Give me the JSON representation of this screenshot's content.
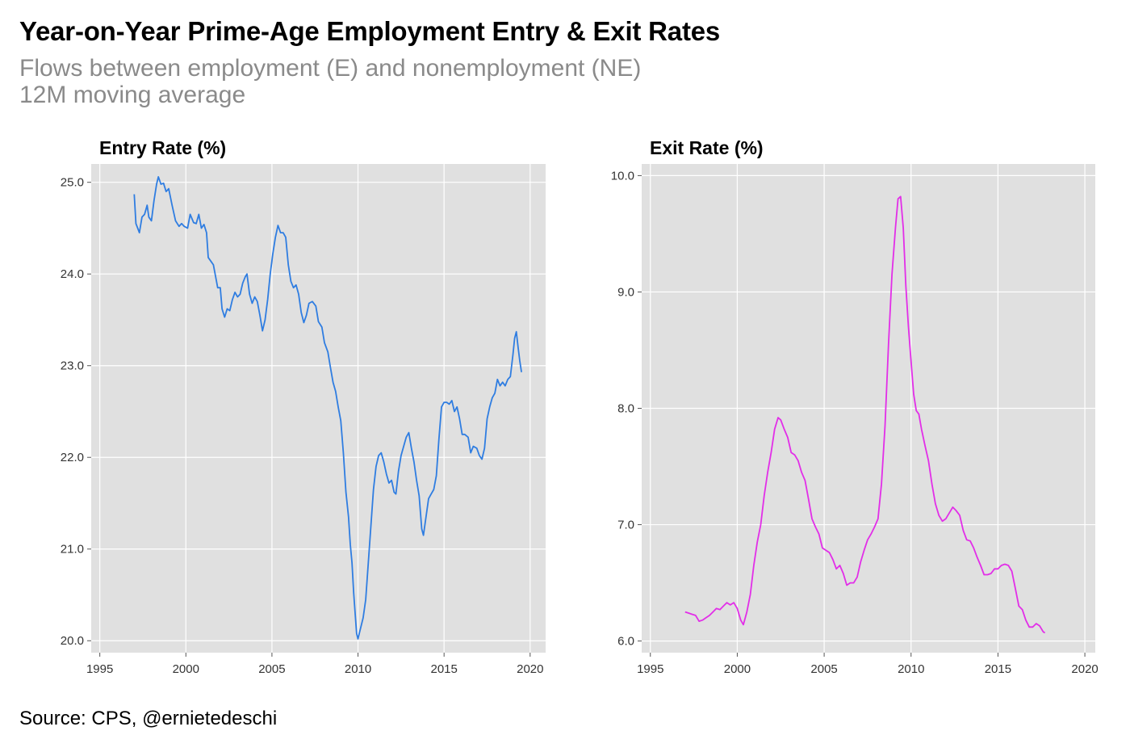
{
  "title": "Year-on-Year Prime-Age Employment Entry & Exit Rates",
  "subtitle_line1": "Flows between employment (E) and nonemployment (NE)",
  "subtitle_line2": "12M moving average",
  "source": "Source: CPS, @ernietedeschi",
  "chart_data": [
    {
      "type": "line",
      "title": "Entry Rate (%)",
      "color": "#2f7de1",
      "xlim": [
        1994.5,
        2020.9
      ],
      "ylim": [
        19.87,
        25.2
      ],
      "xticks": [
        1995,
        2000,
        2005,
        2010,
        2015,
        2020
      ],
      "yticks": [
        20.0,
        21.0,
        22.0,
        23.0,
        24.0,
        25.0
      ],
      "ytick_labels": [
        "20.0",
        "21.0",
        "22.0",
        "23.0",
        "24.0",
        "25.0"
      ],
      "xtick_labels": [
        "1995",
        "2000",
        "2005",
        "2010",
        "2015",
        "2020"
      ],
      "points": [
        [
          1997.0,
          24.87
        ],
        [
          1997.1,
          24.55
        ],
        [
          1997.2,
          24.5
        ],
        [
          1997.3,
          24.45
        ],
        [
          1997.45,
          24.62
        ],
        [
          1997.6,
          24.65
        ],
        [
          1997.75,
          24.75
        ],
        [
          1997.85,
          24.62
        ],
        [
          1998.0,
          24.58
        ],
        [
          1998.15,
          24.8
        ],
        [
          1998.3,
          24.98
        ],
        [
          1998.4,
          25.06
        ],
        [
          1998.55,
          24.98
        ],
        [
          1998.7,
          24.99
        ],
        [
          1998.85,
          24.9
        ],
        [
          1999.0,
          24.93
        ],
        [
          1999.2,
          24.75
        ],
        [
          1999.4,
          24.58
        ],
        [
          1999.6,
          24.52
        ],
        [
          1999.75,
          24.55
        ],
        [
          1999.9,
          24.52
        ],
        [
          2000.1,
          24.5
        ],
        [
          2000.25,
          24.65
        ],
        [
          2000.45,
          24.56
        ],
        [
          2000.6,
          24.55
        ],
        [
          2000.75,
          24.65
        ],
        [
          2000.9,
          24.5
        ],
        [
          2001.05,
          24.54
        ],
        [
          2001.2,
          24.45
        ],
        [
          2001.3,
          24.18
        ],
        [
          2001.45,
          24.14
        ],
        [
          2001.6,
          24.1
        ],
        [
          2001.75,
          23.95
        ],
        [
          2001.85,
          23.85
        ],
        [
          2002.0,
          23.85
        ],
        [
          2002.1,
          23.62
        ],
        [
          2002.25,
          23.53
        ],
        [
          2002.4,
          23.62
        ],
        [
          2002.55,
          23.6
        ],
        [
          2002.7,
          23.72
        ],
        [
          2002.85,
          23.8
        ],
        [
          2003.0,
          23.75
        ],
        [
          2003.15,
          23.78
        ],
        [
          2003.3,
          23.9
        ],
        [
          2003.45,
          23.97
        ],
        [
          2003.55,
          24.0
        ],
        [
          2003.7,
          23.78
        ],
        [
          2003.85,
          23.68
        ],
        [
          2004.0,
          23.75
        ],
        [
          2004.15,
          23.7
        ],
        [
          2004.3,
          23.55
        ],
        [
          2004.45,
          23.38
        ],
        [
          2004.6,
          23.5
        ],
        [
          2004.75,
          23.72
        ],
        [
          2004.9,
          24.0
        ],
        [
          2005.05,
          24.22
        ],
        [
          2005.2,
          24.4
        ],
        [
          2005.35,
          24.53
        ],
        [
          2005.5,
          24.45
        ],
        [
          2005.65,
          24.45
        ],
        [
          2005.8,
          24.4
        ],
        [
          2005.95,
          24.1
        ],
        [
          2006.1,
          23.92
        ],
        [
          2006.25,
          23.85
        ],
        [
          2006.4,
          23.88
        ],
        [
          2006.55,
          23.78
        ],
        [
          2006.7,
          23.58
        ],
        [
          2006.85,
          23.47
        ],
        [
          2007.0,
          23.55
        ],
        [
          2007.15,
          23.68
        ],
        [
          2007.35,
          23.7
        ],
        [
          2007.55,
          23.65
        ],
        [
          2007.7,
          23.48
        ],
        [
          2007.9,
          23.42
        ],
        [
          2008.05,
          23.25
        ],
        [
          2008.25,
          23.15
        ],
        [
          2008.4,
          22.98
        ],
        [
          2008.55,
          22.82
        ],
        [
          2008.7,
          22.72
        ],
        [
          2008.85,
          22.55
        ],
        [
          2009.0,
          22.4
        ],
        [
          2009.15,
          22.05
        ],
        [
          2009.3,
          21.62
        ],
        [
          2009.45,
          21.35
        ],
        [
          2009.55,
          21.05
        ],
        [
          2009.65,
          20.85
        ],
        [
          2009.75,
          20.52
        ],
        [
          2009.85,
          20.25
        ],
        [
          2009.92,
          20.08
        ],
        [
          2010.0,
          20.02
        ],
        [
          2010.1,
          20.1
        ],
        [
          2010.3,
          20.25
        ],
        [
          2010.45,
          20.45
        ],
        [
          2010.6,
          20.85
        ],
        [
          2010.75,
          21.25
        ],
        [
          2010.9,
          21.65
        ],
        [
          2011.05,
          21.9
        ],
        [
          2011.2,
          22.02
        ],
        [
          2011.35,
          22.05
        ],
        [
          2011.5,
          21.95
        ],
        [
          2011.65,
          21.82
        ],
        [
          2011.8,
          21.72
        ],
        [
          2011.95,
          21.75
        ],
        [
          2012.1,
          21.62
        ],
        [
          2012.2,
          21.6
        ],
        [
          2012.35,
          21.85
        ],
        [
          2012.5,
          22.02
        ],
        [
          2012.65,
          22.12
        ],
        [
          2012.8,
          22.22
        ],
        [
          2012.95,
          22.27
        ],
        [
          2013.1,
          22.1
        ],
        [
          2013.25,
          21.95
        ],
        [
          2013.4,
          21.75
        ],
        [
          2013.55,
          21.58
        ],
        [
          2013.7,
          21.22
        ],
        [
          2013.8,
          21.15
        ],
        [
          2013.95,
          21.35
        ],
        [
          2014.1,
          21.55
        ],
        [
          2014.25,
          21.6
        ],
        [
          2014.4,
          21.65
        ],
        [
          2014.55,
          21.8
        ],
        [
          2014.7,
          22.2
        ],
        [
          2014.85,
          22.55
        ],
        [
          2015.0,
          22.6
        ],
        [
          2015.15,
          22.6
        ],
        [
          2015.3,
          22.58
        ],
        [
          2015.45,
          22.62
        ],
        [
          2015.6,
          22.5
        ],
        [
          2015.75,
          22.55
        ],
        [
          2015.9,
          22.42
        ],
        [
          2016.05,
          22.25
        ],
        [
          2016.2,
          22.25
        ],
        [
          2016.4,
          22.22
        ],
        [
          2016.55,
          22.05
        ],
        [
          2016.7,
          22.12
        ],
        [
          2016.9,
          22.1
        ],
        [
          2017.05,
          22.02
        ],
        [
          2017.2,
          21.98
        ],
        [
          2017.35,
          22.1
        ],
        [
          2017.5,
          22.42
        ],
        [
          2017.65,
          22.55
        ],
        [
          2017.8,
          22.65
        ],
        [
          2017.95,
          22.7
        ],
        [
          2018.1,
          22.85
        ],
        [
          2018.25,
          22.78
        ],
        [
          2018.4,
          22.82
        ],
        [
          2018.55,
          22.78
        ],
        [
          2018.7,
          22.85
        ],
        [
          2018.85,
          22.88
        ],
        [
          2019.0,
          23.12
        ],
        [
          2019.1,
          23.3
        ],
        [
          2019.2,
          23.37
        ],
        [
          2019.3,
          23.2
        ],
        [
          2019.4,
          23.05
        ],
        [
          2019.5,
          22.93
        ]
      ]
    },
    {
      "type": "line",
      "title": "Exit Rate (%)",
      "color": "#e22ee8",
      "xlim": [
        1994.5,
        2020.6
      ],
      "ylim": [
        5.9,
        10.1
      ],
      "xticks": [
        1995,
        2000,
        2005,
        2010,
        2015,
        2020
      ],
      "yticks": [
        6.0,
        7.0,
        8.0,
        9.0,
        10.0
      ],
      "ytick_labels": [
        "6.0",
        "7.0",
        "8.0",
        "9.0",
        "10.0"
      ],
      "xtick_labels": [
        "1995",
        "2000",
        "2005",
        "2010",
        "2015",
        "2020"
      ],
      "points": [
        [
          1997.0,
          6.25
        ],
        [
          1997.2,
          6.24
        ],
        [
          1997.4,
          6.23
        ],
        [
          1997.6,
          6.22
        ],
        [
          1997.8,
          6.17
        ],
        [
          1998.0,
          6.18
        ],
        [
          1998.2,
          6.2
        ],
        [
          1998.4,
          6.22
        ],
        [
          1998.6,
          6.25
        ],
        [
          1998.8,
          6.28
        ],
        [
          1999.0,
          6.27
        ],
        [
          1999.2,
          6.3
        ],
        [
          1999.4,
          6.33
        ],
        [
          1999.6,
          6.31
        ],
        [
          1999.8,
          6.33
        ],
        [
          2000.0,
          6.28
        ],
        [
          2000.2,
          6.18
        ],
        [
          2000.35,
          6.14
        ],
        [
          2000.55,
          6.25
        ],
        [
          2000.75,
          6.4
        ],
        [
          2000.95,
          6.65
        ],
        [
          2001.15,
          6.85
        ],
        [
          2001.35,
          7.0
        ],
        [
          2001.55,
          7.25
        ],
        [
          2001.75,
          7.45
        ],
        [
          2001.95,
          7.62
        ],
        [
          2002.15,
          7.82
        ],
        [
          2002.35,
          7.92
        ],
        [
          2002.5,
          7.9
        ],
        [
          2002.7,
          7.82
        ],
        [
          2002.9,
          7.75
        ],
        [
          2003.1,
          7.62
        ],
        [
          2003.3,
          7.6
        ],
        [
          2003.5,
          7.55
        ],
        [
          2003.7,
          7.45
        ],
        [
          2003.9,
          7.38
        ],
        [
          2004.1,
          7.22
        ],
        [
          2004.3,
          7.05
        ],
        [
          2004.5,
          6.98
        ],
        [
          2004.7,
          6.92
        ],
        [
          2004.9,
          6.8
        ],
        [
          2005.1,
          6.78
        ],
        [
          2005.3,
          6.76
        ],
        [
          2005.5,
          6.7
        ],
        [
          2005.7,
          6.62
        ],
        [
          2005.9,
          6.65
        ],
        [
          2006.1,
          6.58
        ],
        [
          2006.3,
          6.48
        ],
        [
          2006.5,
          6.5
        ],
        [
          2006.7,
          6.5
        ],
        [
          2006.9,
          6.55
        ],
        [
          2007.1,
          6.68
        ],
        [
          2007.3,
          6.78
        ],
        [
          2007.5,
          6.87
        ],
        [
          2007.7,
          6.92
        ],
        [
          2007.9,
          6.98
        ],
        [
          2008.1,
          7.05
        ],
        [
          2008.3,
          7.35
        ],
        [
          2008.5,
          7.85
        ],
        [
          2008.7,
          8.55
        ],
        [
          2008.9,
          9.15
        ],
        [
          2009.1,
          9.55
        ],
        [
          2009.25,
          9.8
        ],
        [
          2009.4,
          9.82
        ],
        [
          2009.55,
          9.55
        ],
        [
          2009.7,
          9.05
        ],
        [
          2009.85,
          8.7
        ],
        [
          2010.0,
          8.4
        ],
        [
          2010.15,
          8.12
        ],
        [
          2010.3,
          7.98
        ],
        [
          2010.45,
          7.95
        ],
        [
          2010.6,
          7.82
        ],
        [
          2010.8,
          7.68
        ],
        [
          2011.0,
          7.55
        ],
        [
          2011.2,
          7.35
        ],
        [
          2011.4,
          7.18
        ],
        [
          2011.6,
          7.08
        ],
        [
          2011.8,
          7.03
        ],
        [
          2012.0,
          7.05
        ],
        [
          2012.2,
          7.1
        ],
        [
          2012.4,
          7.15
        ],
        [
          2012.6,
          7.12
        ],
        [
          2012.8,
          7.08
        ],
        [
          2013.0,
          6.95
        ],
        [
          2013.2,
          6.87
        ],
        [
          2013.4,
          6.86
        ],
        [
          2013.6,
          6.8
        ],
        [
          2013.8,
          6.72
        ],
        [
          2014.0,
          6.65
        ],
        [
          2014.2,
          6.57
        ],
        [
          2014.4,
          6.57
        ],
        [
          2014.6,
          6.58
        ],
        [
          2014.8,
          6.62
        ],
        [
          2015.0,
          6.62
        ],
        [
          2015.2,
          6.65
        ],
        [
          2015.4,
          6.66
        ],
        [
          2015.6,
          6.65
        ],
        [
          2015.8,
          6.6
        ],
        [
          2016.0,
          6.45
        ],
        [
          2016.2,
          6.3
        ],
        [
          2016.4,
          6.27
        ],
        [
          2016.6,
          6.18
        ],
        [
          2016.8,
          6.12
        ],
        [
          2017.0,
          6.12
        ],
        [
          2017.2,
          6.15
        ],
        [
          2017.4,
          6.13
        ],
        [
          2017.6,
          6.08
        ],
        [
          2017.7,
          6.07
        ]
      ]
    }
  ]
}
